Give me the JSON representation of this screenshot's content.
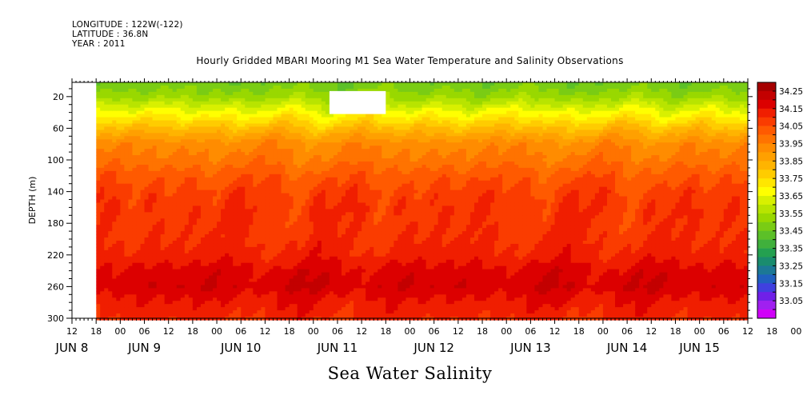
{
  "header": {
    "longitude": "LONGITUDE : 122W(-122)",
    "latitude": "LATITUDE : 36.8N",
    "year": "YEAR : 2011",
    "title": "Hourly Gridded MBARI Mooring M1 Sea Water Temperature and Salinity Observations"
  },
  "footer": {
    "variable_title": "Sea Water Salinity"
  },
  "chart_data": {
    "type": "heatmap",
    "title": "Hourly Gridded MBARI Mooring M1 Sea Water Temperature and Salinity Observations",
    "xlabel": "",
    "ylabel": "DEPTH (m)",
    "variable": "Sea Water Salinity",
    "x_start_hour": 12,
    "x_end_hour": 180,
    "ylim": [
      300,
      2
    ],
    "y_ticks": [
      20,
      60,
      100,
      140,
      180,
      220,
      260,
      300
    ],
    "x_hour_labels": [
      "12",
      "18",
      "00",
      "06",
      "12",
      "18",
      "00",
      "06",
      "12",
      "18",
      "00",
      "06",
      "12",
      "18",
      "00",
      "06",
      "12",
      "18",
      "00",
      "06",
      "12",
      "18",
      "00",
      "06",
      "12",
      "18",
      "00",
      "06",
      "12",
      "18",
      "00",
      "06"
    ],
    "x_day_labels": [
      {
        "label": "JUN  8",
        "hour": 12
      },
      {
        "label": "JUN  9",
        "hour": 30
      },
      {
        "label": "JUN 10",
        "hour": 54
      },
      {
        "label": "JUN 11",
        "hour": 78
      },
      {
        "label": "JUN 12",
        "hour": 102
      },
      {
        "label": "JUN 13",
        "hour": 126
      },
      {
        "label": "JUN 14",
        "hour": 150
      },
      {
        "label": "JUN 15",
        "hour": 168
      }
    ],
    "colorbar": {
      "labels": [
        "34.25",
        "34.15",
        "34.05",
        "33.95",
        "33.85",
        "33.75",
        "33.65",
        "33.55",
        "33.45",
        "33.35",
        "33.25",
        "33.15",
        "33.05"
      ],
      "levels": [
        34.3,
        34.25,
        34.2,
        34.15,
        34.1,
        34.05,
        34.0,
        33.95,
        33.9,
        33.85,
        33.8,
        33.75,
        33.7,
        33.65,
        33.6,
        33.55,
        33.5,
        33.45,
        33.4,
        33.35,
        33.3,
        33.25,
        33.2,
        33.15,
        33.1,
        33.05
      ],
      "colors": [
        "#a50000",
        "#c30000",
        "#dc0000",
        "#f01e00",
        "#fa3c00",
        "#ff5a00",
        "#ff7300",
        "#ff8c00",
        "#ffa000",
        "#ffb400",
        "#ffcc00",
        "#ffe600",
        "#ffff00",
        "#d8f000",
        "#b8e400",
        "#99d800",
        "#7acc14",
        "#5cc028",
        "#40b03c",
        "#24a050",
        "#1a8c6e",
        "#1c7896",
        "#2060c0",
        "#4040e0",
        "#7020e8",
        "#a020f0",
        "#d000f8"
      ]
    },
    "depth_profile": [
      {
        "depth": 5,
        "salinity": 33.52
      },
      {
        "depth": 20,
        "salinity": 33.58
      },
      {
        "depth": 40,
        "salinity": 33.72
      },
      {
        "depth": 60,
        "salinity": 33.86
      },
      {
        "depth": 80,
        "salinity": 33.98
      },
      {
        "depth": 100,
        "salinity": 34.02
      },
      {
        "depth": 120,
        "salinity": 34.08
      },
      {
        "depth": 140,
        "salinity": 34.12
      },
      {
        "depth": 160,
        "salinity": 34.14
      },
      {
        "depth": 180,
        "salinity": 34.14
      },
      {
        "depth": 200,
        "salinity": 34.15
      },
      {
        "depth": 220,
        "salinity": 34.17
      },
      {
        "depth": 240,
        "salinity": 34.22
      },
      {
        "depth": 260,
        "salinity": 34.24
      },
      {
        "depth": 280,
        "salinity": 34.19
      },
      {
        "depth": 300,
        "salinity": 34.16
      }
    ],
    "data_start_hour": 18,
    "missing_regions": [
      {
        "hour_start": 12,
        "hour_end": 18,
        "depth_top": 2,
        "depth_bottom": 300
      },
      {
        "hour_start": 76,
        "hour_end": 90,
        "depth_top": 13,
        "depth_bottom": 42
      }
    ]
  }
}
